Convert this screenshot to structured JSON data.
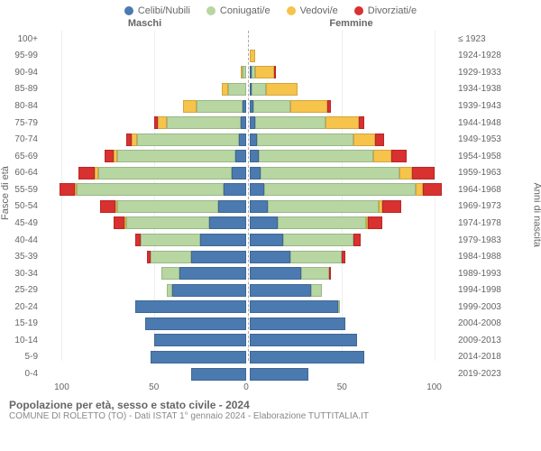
{
  "chart": {
    "type": "population-pyramid",
    "legend": [
      {
        "label": "Celibi/Nubili",
        "color": "#4a7ab0"
      },
      {
        "label": "Coniugati/e",
        "color": "#b7d6a1"
      },
      {
        "label": "Vedovi/e",
        "color": "#f6c34b"
      },
      {
        "label": "Divorziati/e",
        "color": "#d93030"
      }
    ],
    "header_maschi": "Maschi",
    "header_femmine": "Femmine",
    "y_label_left": "Fasce di età",
    "y_label_right": "Anni di nascita",
    "x_ticks": [
      0,
      50,
      100
    ],
    "xlim": 110,
    "bar_border": "rgba(0,0,0,0.15)",
    "grid_color": "#eeeeee",
    "center_dash_color": "#aaaaaa",
    "background_color": "#ffffff",
    "label_fontsize": 10,
    "rows": [
      {
        "age": "100+",
        "birth": "≤ 1923",
        "m": {
          "c": 0,
          "k": 0,
          "w": 0,
          "d": 0
        },
        "f": {
          "c": 0,
          "k": 0,
          "w": 0,
          "d": 0
        }
      },
      {
        "age": "95-99",
        "birth": "1924-1928",
        "m": {
          "c": 0,
          "k": 0,
          "w": 0,
          "d": 0
        },
        "f": {
          "c": 0,
          "k": 0,
          "w": 3,
          "d": 0
        }
      },
      {
        "age": "90-94",
        "birth": "1929-1933",
        "m": {
          "c": 0,
          "k": 2,
          "w": 1,
          "d": 0
        },
        "f": {
          "c": 1,
          "k": 2,
          "w": 10,
          "d": 1
        }
      },
      {
        "age": "85-89",
        "birth": "1934-1938",
        "m": {
          "c": 0,
          "k": 10,
          "w": 3,
          "d": 0
        },
        "f": {
          "c": 1,
          "k": 8,
          "w": 17,
          "d": 0
        }
      },
      {
        "age": "80-84",
        "birth": "1939-1943",
        "m": {
          "c": 2,
          "k": 25,
          "w": 7,
          "d": 0
        },
        "f": {
          "c": 2,
          "k": 20,
          "w": 20,
          "d": 2
        }
      },
      {
        "age": "75-79",
        "birth": "1944-1948",
        "m": {
          "c": 3,
          "k": 40,
          "w": 5,
          "d": 2
        },
        "f": {
          "c": 3,
          "k": 38,
          "w": 18,
          "d": 3
        }
      },
      {
        "age": "70-74",
        "birth": "1949-1953",
        "m": {
          "c": 4,
          "k": 55,
          "w": 3,
          "d": 3
        },
        "f": {
          "c": 4,
          "k": 52,
          "w": 12,
          "d": 5
        }
      },
      {
        "age": "65-69",
        "birth": "1954-1958",
        "m": {
          "c": 6,
          "k": 64,
          "w": 2,
          "d": 5
        },
        "f": {
          "c": 5,
          "k": 62,
          "w": 10,
          "d": 8
        }
      },
      {
        "age": "60-64",
        "birth": "1959-1963",
        "m": {
          "c": 8,
          "k": 72,
          "w": 2,
          "d": 9
        },
        "f": {
          "c": 6,
          "k": 75,
          "w": 7,
          "d": 12
        }
      },
      {
        "age": "55-59",
        "birth": "1964-1968",
        "m": {
          "c": 12,
          "k": 80,
          "w": 1,
          "d": 8
        },
        "f": {
          "c": 8,
          "k": 82,
          "w": 4,
          "d": 10
        }
      },
      {
        "age": "50-54",
        "birth": "1969-1973",
        "m": {
          "c": 15,
          "k": 55,
          "w": 1,
          "d": 8
        },
        "f": {
          "c": 10,
          "k": 60,
          "w": 2,
          "d": 10
        }
      },
      {
        "age": "45-49",
        "birth": "1974-1978",
        "m": {
          "c": 20,
          "k": 45,
          "w": 1,
          "d": 6
        },
        "f": {
          "c": 15,
          "k": 48,
          "w": 1,
          "d": 8
        }
      },
      {
        "age": "40-44",
        "birth": "1979-1983",
        "m": {
          "c": 25,
          "k": 32,
          "w": 0,
          "d": 3
        },
        "f": {
          "c": 18,
          "k": 38,
          "w": 0,
          "d": 4
        }
      },
      {
        "age": "35-39",
        "birth": "1984-1988",
        "m": {
          "c": 30,
          "k": 22,
          "w": 0,
          "d": 2
        },
        "f": {
          "c": 22,
          "k": 28,
          "w": 0,
          "d": 2
        }
      },
      {
        "age": "30-34",
        "birth": "1989-1993",
        "m": {
          "c": 36,
          "k": 10,
          "w": 0,
          "d": 0
        },
        "f": {
          "c": 28,
          "k": 15,
          "w": 0,
          "d": 1
        }
      },
      {
        "age": "25-29",
        "birth": "1994-1998",
        "m": {
          "c": 40,
          "k": 3,
          "w": 0,
          "d": 0
        },
        "f": {
          "c": 33,
          "k": 6,
          "w": 0,
          "d": 0
        }
      },
      {
        "age": "20-24",
        "birth": "1999-2003",
        "m": {
          "c": 60,
          "k": 0,
          "w": 0,
          "d": 0
        },
        "f": {
          "c": 48,
          "k": 1,
          "w": 0,
          "d": 0
        }
      },
      {
        "age": "15-19",
        "birth": "2004-2008",
        "m": {
          "c": 55,
          "k": 0,
          "w": 0,
          "d": 0
        },
        "f": {
          "c": 52,
          "k": 0,
          "w": 0,
          "d": 0
        }
      },
      {
        "age": "10-14",
        "birth": "2009-2013",
        "m": {
          "c": 50,
          "k": 0,
          "w": 0,
          "d": 0
        },
        "f": {
          "c": 58,
          "k": 0,
          "w": 0,
          "d": 0
        }
      },
      {
        "age": "5-9",
        "birth": "2014-2018",
        "m": {
          "c": 52,
          "k": 0,
          "w": 0,
          "d": 0
        },
        "f": {
          "c": 62,
          "k": 0,
          "w": 0,
          "d": 0
        }
      },
      {
        "age": "0-4",
        "birth": "2019-2023",
        "m": {
          "c": 30,
          "k": 0,
          "w": 0,
          "d": 0
        },
        "f": {
          "c": 32,
          "k": 0,
          "w": 0,
          "d": 0
        }
      }
    ],
    "footer_title": "Popolazione per età, sesso e stato civile - 2024",
    "footer_sub": "COMUNE DI ROLETTO (TO) - Dati ISTAT 1° gennaio 2024 - Elaborazione TUTTITALIA.IT"
  }
}
